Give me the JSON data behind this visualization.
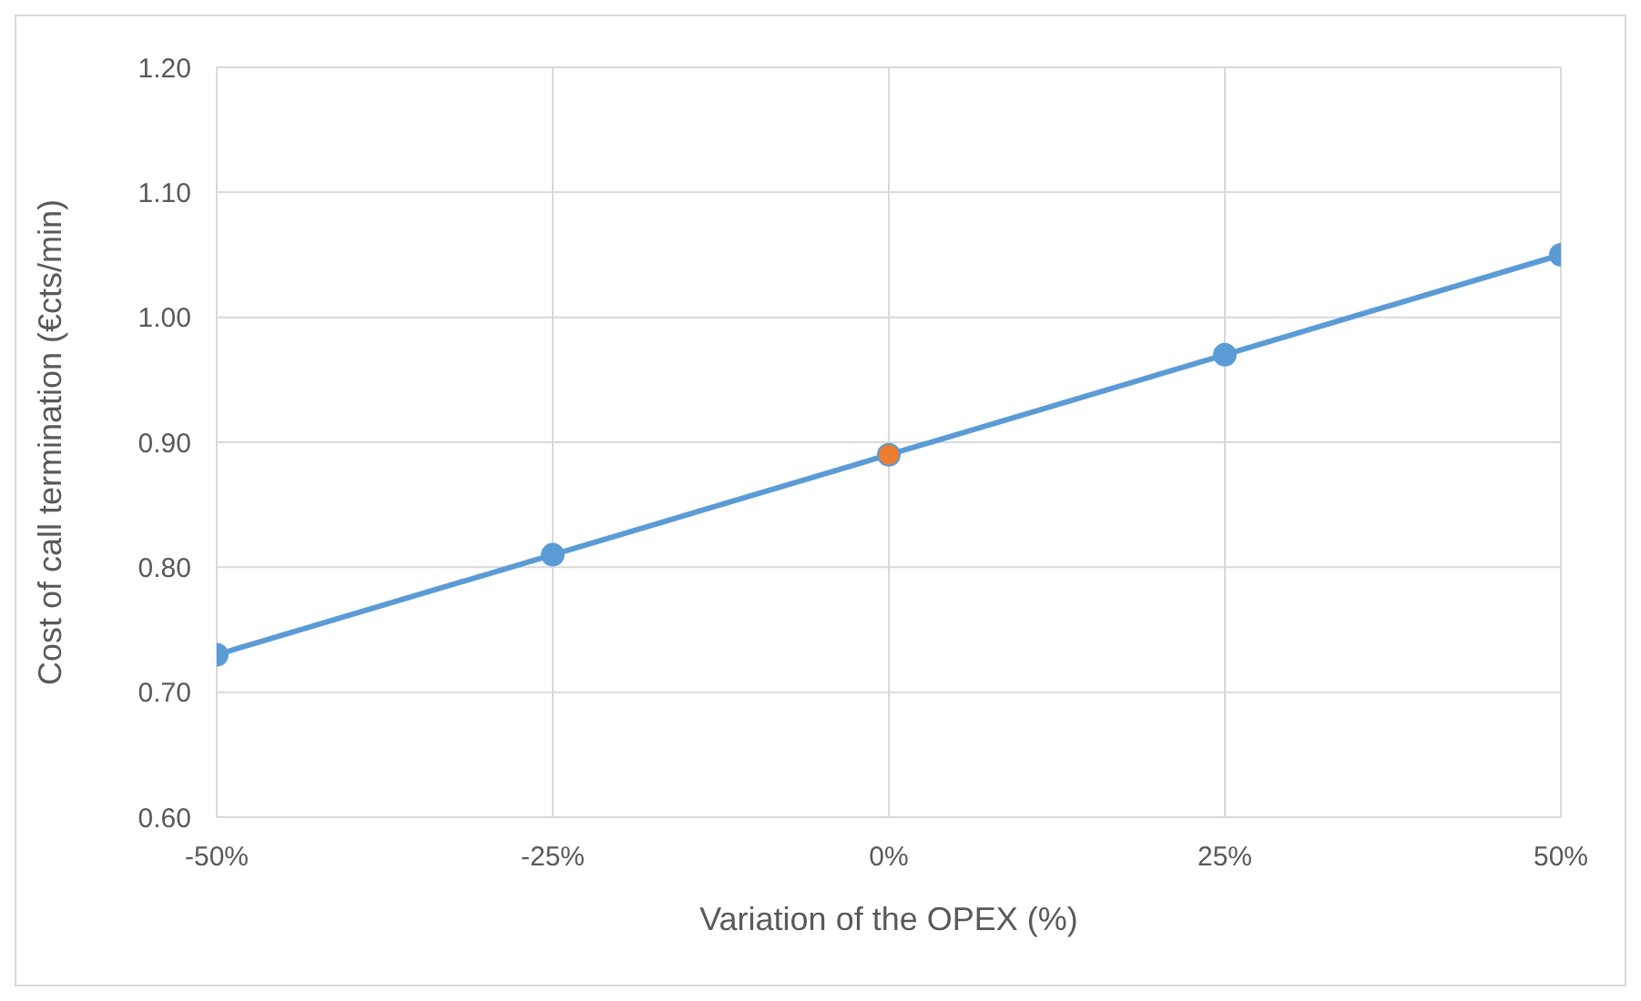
{
  "chart_data": {
    "type": "line",
    "xlabel": "Variation of the OPEX (%)",
    "ylabel": "Cost of call termination (€cts/min)",
    "x": [
      -50,
      -25,
      0,
      25,
      50
    ],
    "series": [
      {
        "color": "#5b9bd5",
        "colors": [
          "#5b9bd5",
          "#5b9bd5",
          "#ed7d31",
          "#5b9bd5",
          "#5b9bd5"
        ],
        "values": [
          0.73,
          0.81,
          0.89,
          0.97,
          1.05
        ]
      }
    ],
    "xlim": [
      -50,
      50
    ],
    "xticks": [
      {
        "value": -50,
        "label": "-50%"
      },
      {
        "value": -25,
        "label": "-25%"
      },
      {
        "value": 0,
        "label": "0%"
      },
      {
        "value": 25,
        "label": "25%"
      },
      {
        "value": 50,
        "label": "50%"
      }
    ],
    "ylim": [
      0.6,
      1.2
    ],
    "yticks": [
      {
        "value": 0.6,
        "label": "0.60"
      },
      {
        "value": 0.7,
        "label": "0.70"
      },
      {
        "value": 0.8,
        "label": "0.80"
      },
      {
        "value": 0.9,
        "label": "0.90"
      },
      {
        "value": 1.0,
        "label": "1.00"
      },
      {
        "value": 1.1,
        "label": "1.10"
      },
      {
        "value": 1.2,
        "label": "1.20"
      }
    ],
    "grid": true,
    "marker": "circle",
    "line_style": "solid"
  }
}
